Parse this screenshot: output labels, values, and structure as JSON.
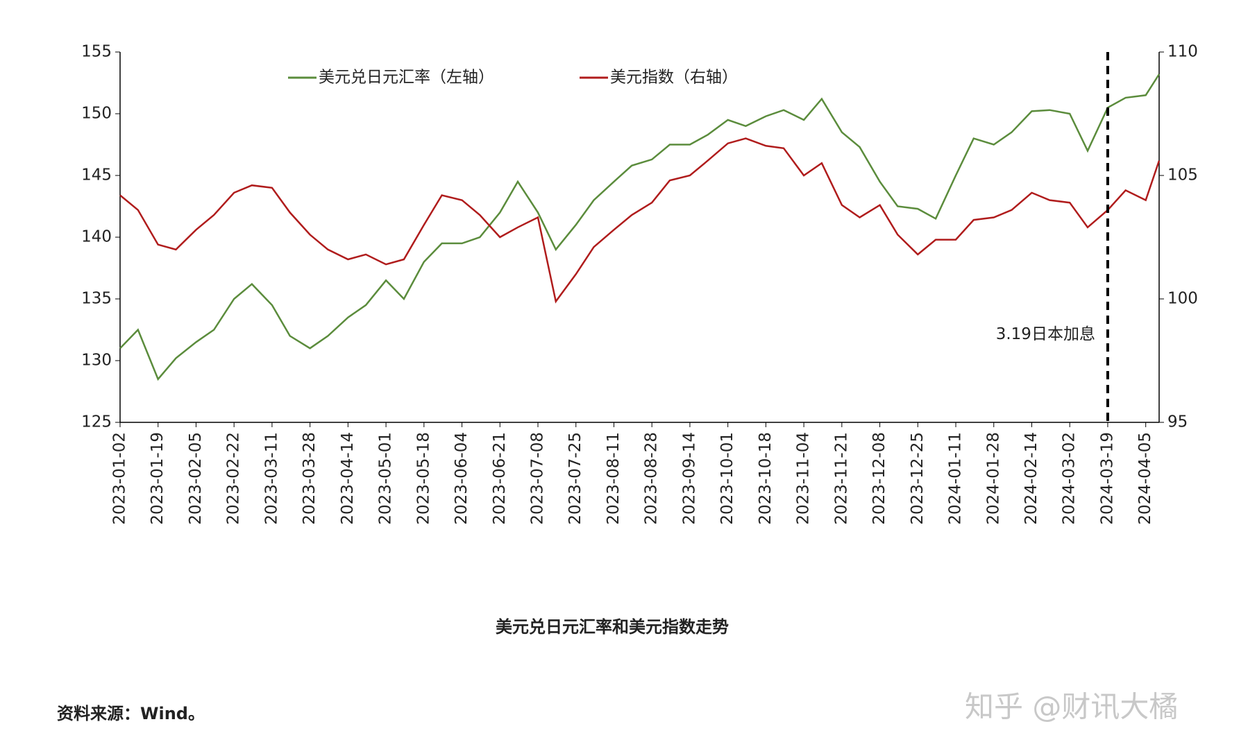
{
  "chart_data": {
    "type": "line",
    "title": "美元兑日元汇率和美元指数走势",
    "source": "资料来源：Wind。",
    "watermark": "知乎 @财讯大橘",
    "x": [
      "2023-01-02",
      "2023-01-10",
      "2023-01-19",
      "2023-01-27",
      "2023-02-05",
      "2023-02-13",
      "2023-02-22",
      "2023-03-02",
      "2023-03-11",
      "2023-03-19",
      "2023-03-28",
      "2023-04-05",
      "2023-04-14",
      "2023-04-22",
      "2023-05-01",
      "2023-05-09",
      "2023-05-18",
      "2023-05-26",
      "2023-06-04",
      "2023-06-12",
      "2023-06-21",
      "2023-06-29",
      "2023-07-08",
      "2023-07-16",
      "2023-07-25",
      "2023-08-02",
      "2023-08-11",
      "2023-08-19",
      "2023-08-28",
      "2023-09-05",
      "2023-09-14",
      "2023-09-22",
      "2023-10-01",
      "2023-10-09",
      "2023-10-18",
      "2023-10-26",
      "2023-11-04",
      "2023-11-12",
      "2023-11-21",
      "2023-11-29",
      "2023-12-08",
      "2023-12-16",
      "2023-12-25",
      "2024-01-02",
      "2024-01-11",
      "2024-01-19",
      "2024-01-28",
      "2024-02-05",
      "2024-02-14",
      "2024-02-22",
      "2024-03-02",
      "2024-03-10",
      "2024-03-19",
      "2024-03-27",
      "2024-04-05",
      "2024-04-11"
    ],
    "series": [
      {
        "name": "美元兑日元汇率（左轴）",
        "color": "#5b8c3c",
        "axis": "y",
        "values": [
          131,
          132.5,
          128.5,
          130.2,
          131.5,
          132.5,
          135,
          136.2,
          134.5,
          132,
          131,
          132,
          133.5,
          134.5,
          136.5,
          135,
          138,
          139.5,
          139.5,
          140,
          142,
          144.5,
          142,
          139,
          141,
          143,
          144.5,
          145.8,
          146.3,
          147.5,
          147.5,
          148.3,
          149.5,
          149,
          149.8,
          150.3,
          149.5,
          151.2,
          148.5,
          147.3,
          144.5,
          142.5,
          142.3,
          141.5,
          145,
          148,
          147.5,
          148.5,
          150.2,
          150.3,
          150,
          147,
          150.5,
          151.3,
          151.5,
          153.2
        ]
      },
      {
        "name": "美元指数（右轴）",
        "color": "#b01c1c",
        "axis": "y2",
        "values": [
          104.2,
          103.6,
          102.2,
          102,
          102.8,
          103.4,
          104.3,
          104.6,
          104.5,
          103.5,
          102.6,
          102,
          101.6,
          101.8,
          101.4,
          101.6,
          103,
          104.2,
          104,
          103.4,
          102.5,
          102.9,
          103.3,
          99.9,
          101,
          102.1,
          102.8,
          103.4,
          103.9,
          104.8,
          105,
          105.6,
          106.3,
          106.5,
          106.2,
          106.1,
          105,
          105.5,
          103.8,
          103.3,
          103.8,
          102.6,
          101.8,
          102.4,
          102.4,
          103.2,
          103.3,
          103.6,
          104.3,
          104,
          103.9,
          102.9,
          103.6,
          104.4,
          104,
          105.6
        ]
      }
    ],
    "xlim": [
      "2023-01-02",
      "2024-04-11"
    ],
    "xticks": [
      "2023-01-02",
      "2023-01-19",
      "2023-02-05",
      "2023-02-22",
      "2023-03-11",
      "2023-03-28",
      "2023-04-14",
      "2023-05-01",
      "2023-05-18",
      "2023-06-04",
      "2023-06-21",
      "2023-07-08",
      "2023-07-25",
      "2023-08-11",
      "2023-08-28",
      "2023-09-14",
      "2023-10-01",
      "2023-10-18",
      "2023-11-04",
      "2023-11-21",
      "2023-12-08",
      "2023-12-25",
      "2024-01-11",
      "2024-01-28",
      "2024-02-14",
      "2024-03-02",
      "2024-03-19",
      "2024-04-05"
    ],
    "ylim": [
      125,
      155
    ],
    "yticks": [
      125,
      130,
      135,
      140,
      145,
      150,
      155
    ],
    "y2lim": [
      95,
      110
    ],
    "y2ticks": [
      95,
      100,
      105,
      110
    ],
    "annotations": [
      {
        "x": "2024-03-19",
        "text": "3.19日本加息"
      }
    ],
    "grid": false,
    "legend": "top"
  }
}
